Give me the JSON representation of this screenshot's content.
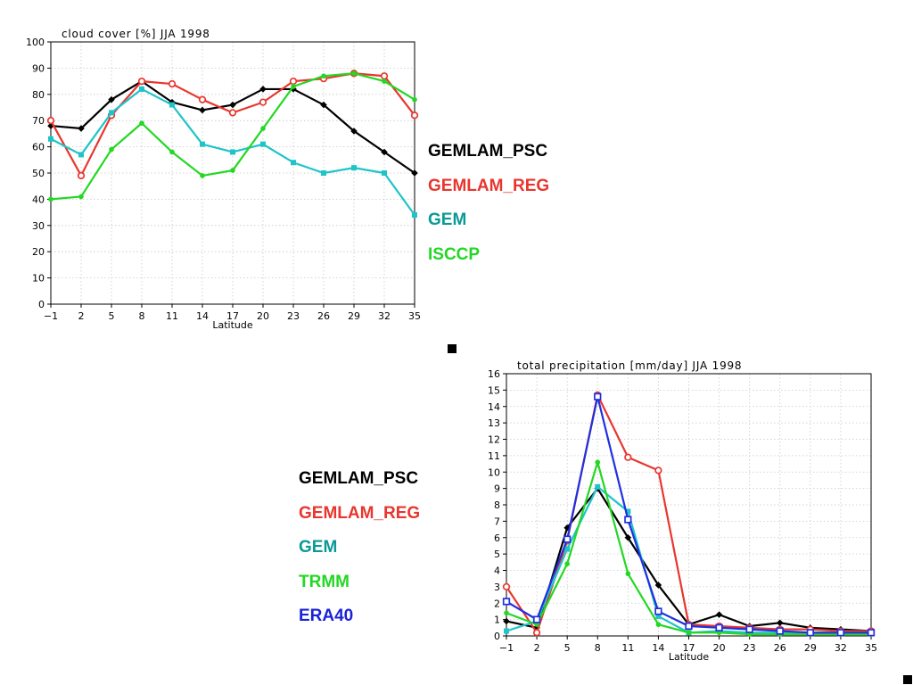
{
  "chart_data": [
    {
      "type": "line",
      "title": "cloud cover [%] JJA 1998",
      "xlabel": "Latitude",
      "ylabel": "",
      "x": [
        -1,
        2,
        5,
        8,
        11,
        14,
        17,
        20,
        23,
        26,
        29,
        32,
        35
      ],
      "xlim": [
        -1,
        35
      ],
      "ylim": [
        0,
        100
      ],
      "yticks": [
        0,
        10,
        20,
        30,
        40,
        50,
        60,
        70,
        80,
        90,
        100
      ],
      "grid": true,
      "legend_position": "right",
      "series": [
        {
          "name": "GEMLAM_PSC",
          "color": "#000000",
          "marker": "diamond",
          "values": [
            68,
            67,
            78,
            85,
            77,
            74,
            76,
            82,
            82,
            76,
            66,
            58,
            50
          ]
        },
        {
          "name": "GEMLAM_REG",
          "color": "#e8362e",
          "marker": "open-circle",
          "values": [
            70,
            49,
            72,
            85,
            84,
            78,
            73,
            77,
            85,
            86,
            88,
            87,
            72
          ]
        },
        {
          "name": "GEM",
          "color": "#1ec4c8",
          "legend_color": "#0a9a96",
          "marker": "square",
          "values": [
            63,
            57,
            73,
            82,
            76,
            61,
            58,
            61,
            54,
            50,
            52,
            50,
            34
          ]
        },
        {
          "name": "ISCCP",
          "color": "#22d822",
          "marker": "dot",
          "values": [
            40,
            41,
            59,
            69,
            58,
            49,
            51,
            67,
            83,
            87,
            88,
            85,
            78
          ]
        }
      ]
    },
    {
      "type": "line",
      "title": "total precipitation [mm/day] JJA 1998",
      "xlabel": "Latitude",
      "ylabel": "",
      "x": [
        -1,
        2,
        5,
        8,
        11,
        14,
        17,
        20,
        23,
        26,
        29,
        32,
        35
      ],
      "xlim": [
        -1,
        35
      ],
      "ylim": [
        0,
        16
      ],
      "yticks": [
        0,
        1,
        2,
        3,
        4,
        5,
        6,
        7,
        8,
        9,
        10,
        11,
        12,
        13,
        14,
        15,
        16
      ],
      "grid": true,
      "legend_position": "left",
      "series": [
        {
          "name": "GEMLAM_PSC",
          "color": "#000000",
          "marker": "diamond",
          "values": [
            0.9,
            0.5,
            6.6,
            9.0,
            6.0,
            3.1,
            0.7,
            1.3,
            0.6,
            0.8,
            0.5,
            0.4,
            0.3
          ]
        },
        {
          "name": "GEMLAM_REG",
          "color": "#e8362e",
          "marker": "open-circle",
          "values": [
            3.0,
            0.2,
            5.8,
            14.7,
            10.9,
            10.1,
            0.7,
            0.6,
            0.5,
            0.4,
            0.4,
            0.3,
            0.3
          ]
        },
        {
          "name": "GEM",
          "color": "#1ec4c8",
          "legend_color": "#0a9a96",
          "marker": "square",
          "values": [
            0.3,
            0.9,
            5.3,
            9.1,
            7.6,
            1.2,
            0.2,
            0.3,
            0.2,
            0.2,
            0.2,
            0.2,
            0.2
          ]
        },
        {
          "name": "TRMM",
          "color": "#22d822",
          "marker": "dot",
          "values": [
            1.4,
            0.7,
            4.4,
            10.6,
            3.8,
            0.7,
            0.2,
            0.2,
            0.1,
            0.1,
            0.1,
            0.1,
            0.1
          ]
        },
        {
          "name": "ERA40",
          "color": "#2030e0",
          "legend_color": "#1a22d8",
          "marker": "open-square",
          "values": [
            2.1,
            1.0,
            5.9,
            14.6,
            7.1,
            1.5,
            0.6,
            0.5,
            0.4,
            0.3,
            0.2,
            0.2,
            0.2
          ]
        }
      ]
    }
  ]
}
